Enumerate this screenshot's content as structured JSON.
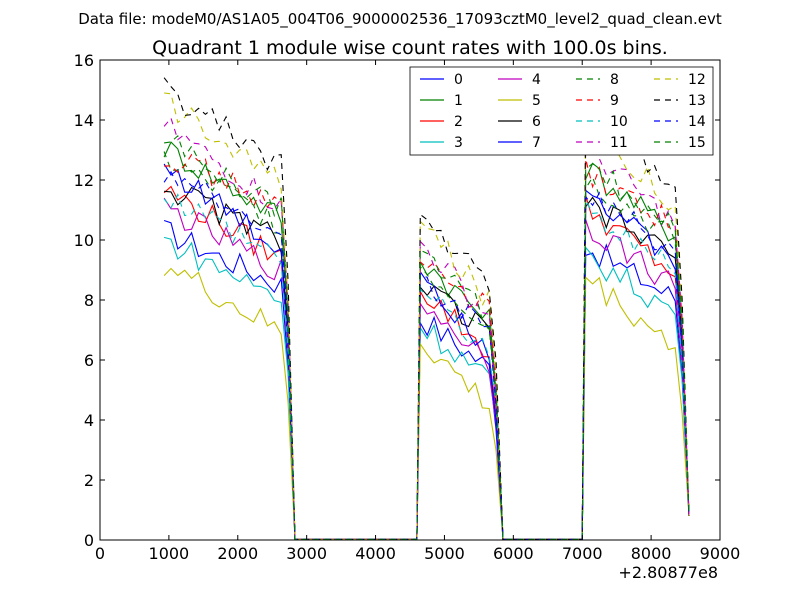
{
  "suptitle": "Data file: modeM0/AS1A05_004T06_9000002536_17093cztM0_level2_quad_clean.evt",
  "chart_data": {
    "type": "line",
    "title": "Quadrant 1 module wise count rates with 100.0s bins.",
    "xlabel": "",
    "ylabel": "",
    "x_offset_label": "+2.80877e8",
    "xlim": [
      0,
      9000
    ],
    "ylim": [
      0,
      16
    ],
    "xticks": [
      0,
      1000,
      2000,
      3000,
      4000,
      5000,
      6000,
      7000,
      8000,
      9000
    ],
    "yticks": [
      0,
      2,
      4,
      6,
      8,
      10,
      12,
      14,
      16
    ],
    "grid": false,
    "legend_position": "top-right",
    "legend_columns": 4,
    "segments": [
      {
        "start": 930,
        "step": 100,
        "count": 19
      },
      {
        "start": 4650,
        "step": 100,
        "count": 12
      },
      {
        "start": 7050,
        "step": 100,
        "count": 15
      }
    ],
    "gap_level": 0.02,
    "series": [
      {
        "name": "0",
        "color": "#0000ff",
        "dash": "solid",
        "level": 10.3,
        "decay": 2.0
      },
      {
        "name": "1",
        "color": "#008000",
        "dash": "solid",
        "level": 13.1,
        "decay": 2.6
      },
      {
        "name": "2",
        "color": "#ff0000",
        "dash": "solid",
        "level": 11.7,
        "decay": 2.6
      },
      {
        "name": "3",
        "color": "#00bfbf",
        "dash": "solid",
        "level": 10.0,
        "decay": 2.2
      },
      {
        "name": "4",
        "color": "#bf00bf",
        "dash": "solid",
        "level": 11.1,
        "decay": 2.4
      },
      {
        "name": "5",
        "color": "#bfbf00",
        "dash": "solid",
        "level": 9.2,
        "decay": 2.6
      },
      {
        "name": "6",
        "color": "#000000",
        "dash": "solid",
        "level": 11.8,
        "decay": 2.0
      },
      {
        "name": "7",
        "color": "#0000ff",
        "dash": "solid",
        "level": 12.5,
        "decay": 3.2
      },
      {
        "name": "8",
        "color": "#008000",
        "dash": "dashed",
        "level": 12.7,
        "decay": 2.4
      },
      {
        "name": "9",
        "color": "#ff0000",
        "dash": "dashed",
        "level": 12.9,
        "decay": 2.0
      },
      {
        "name": "10",
        "color": "#00bfbf",
        "dash": "dashed",
        "level": 11.6,
        "decay": 2.4
      },
      {
        "name": "11",
        "color": "#bf00bf",
        "dash": "dashed",
        "level": 13.8,
        "decay": 3.0
      },
      {
        "name": "12",
        "color": "#bfbf00",
        "dash": "dashed",
        "level": 14.7,
        "decay": 3.2
      },
      {
        "name": "13",
        "color": "#000000",
        "dash": "dashed",
        "level": 15.0,
        "decay": 2.8
      },
      {
        "name": "14",
        "color": "#0000ff",
        "dash": "dashed",
        "level": 12.2,
        "decay": 2.2
      },
      {
        "name": "15",
        "color": "#008000",
        "dash": "dashed",
        "level": 13.3,
        "decay": 2.6
      }
    ]
  }
}
